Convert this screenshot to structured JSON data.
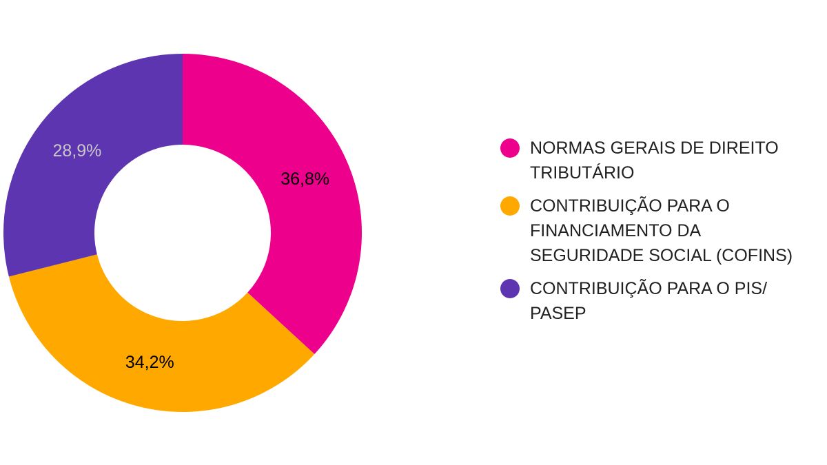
{
  "chart_data": {
    "type": "pie",
    "donut": true,
    "categories": [
      "NORMAS GERAIS DE DIREITO\nTRIBUTÁRIO",
      "CONTRIBUIÇÃO PARA O\nFINANCIAMENTO DA\nSEGURIDADE SOCIAL (COFINS)",
      "CONTRIBUIÇÃO PARA O PIS/\nPASEP"
    ],
    "values": [
      36.8,
      34.2,
      28.9
    ],
    "value_labels": [
      "36,8%",
      "34,2%",
      "28,9%"
    ],
    "colors": [
      "#ec008c",
      "#ffa800",
      "#5e35b1"
    ],
    "label_colors": [
      "#000000",
      "#000000",
      "#c8c8c8"
    ],
    "legend_position": "right",
    "start_angle": "top, clockwise"
  }
}
